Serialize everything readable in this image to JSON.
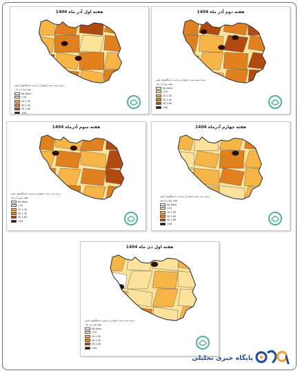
{
  "colors": {
    "no_data": "#ffffff",
    "lt10": "#fbe29a",
    "b10_30": "#f7b547",
    "b30_45": "#e0801f",
    "b45_64": "#b24a12",
    "gt64": "#2e0d05",
    "logo_green": "#4fb09a",
    "brand_blue": "#2a4d8f",
    "brand_orange": "#f2a33a"
  },
  "legend": {
    "items": [
      {
        "label": "No Data",
        "key": "no_data"
      },
      {
        "label": "<10",
        "key": "lt10"
      },
      {
        "label": "10.1-30",
        "key": "b10_30"
      },
      {
        "label": "30.1-45",
        "key": "b30_45"
      },
      {
        "label": "45.1-64",
        "key": "b45_64"
      },
      {
        "label": ">64",
        "key": "gt64"
      }
    ]
  },
  "panels": [
    {
      "title": "هفته اول آذر ماه 1404",
      "caption": "درصد تست مثبت انفلوانزا برحسب دانشگاههای علوم",
      "legend_title": "هفته اول آذر ماه"
    },
    {
      "title": "هفته دوم آذر ماه 1404",
      "caption": "درصد تست مثبت انفلوانزا برحسب دانشگاههای علوم",
      "legend_title": "هفته دوم آذر ماه"
    },
    {
      "title": "هفته سوم آذرماه 1404",
      "caption": "درصد تست مثبت انفلوانزا برحسب دانشگاههای علوم",
      "legend_title": "هفته سوم آذر ماه"
    },
    {
      "title": "هفته چهارم آذرماه 1404",
      "caption": "درصد تست مثبت انفلوانزا برحسب دانشگاههای علوم",
      "legend_title": "هفته چهارم آذرماه"
    },
    {
      "title": "هفته اول دی ماه 1404",
      "caption": "درصد تست مثبت انفلوانزا برحسب دانشگاههای علوم",
      "legend_title": "هفته اول دی ماه"
    }
  ],
  "brand": {
    "name": "پایگاه خبری تحلیلی",
    "logo_icon": "rokna-logo-icon"
  }
}
